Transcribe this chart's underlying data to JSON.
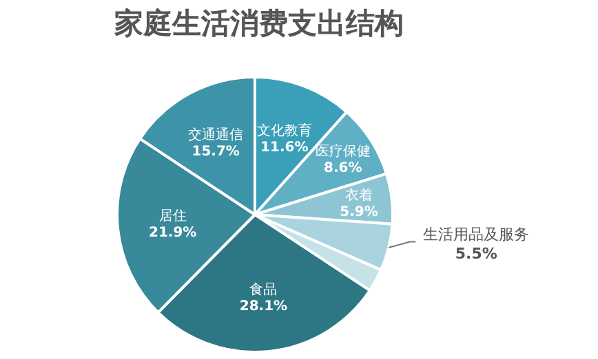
{
  "chart_data": {
    "type": "pie",
    "title": "家庭生活消费支出结构",
    "categories": [
      "文化教育",
      "医疗保健",
      "衣着",
      "生活用品及服务",
      null,
      "食品",
      "居住",
      "交通通信"
    ],
    "values": [
      11.6,
      8.6,
      5.9,
      5.5,
      2.7,
      28.1,
      21.9,
      15.7
    ],
    "value_labels": [
      "11.6%",
      "8.6%",
      "5.9%",
      "5.5%",
      null,
      "28.1%",
      "21.9%",
      "15.7%"
    ],
    "colors": [
      "#3a9fb8",
      "#5fb0c4",
      "#8ec5d3",
      "#a9d3de",
      "#c6e2e9",
      "#2d7784",
      "#38899a",
      "#3d93a8"
    ]
  }
}
